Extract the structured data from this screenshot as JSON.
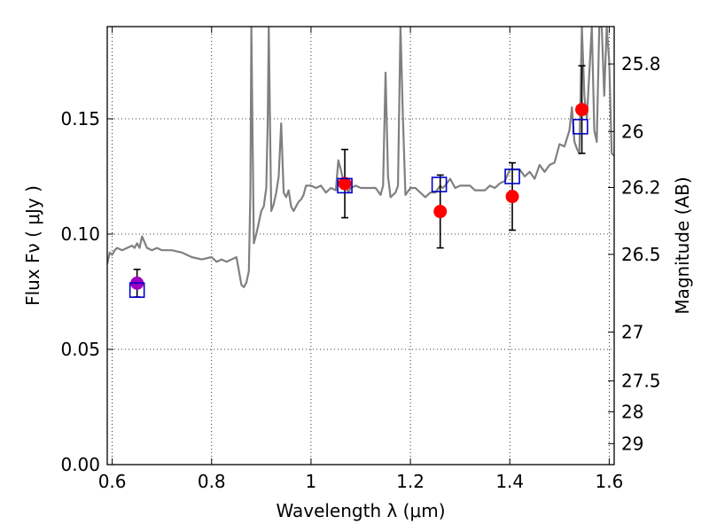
{
  "chart_data": {
    "type": "scatter",
    "title": "",
    "xlabel": "Wavelength  λ (μm)",
    "ylabel": "Flux  Fν  ( μJy )",
    "y2label": "Magnitude (AB)",
    "xlim": [
      0.59,
      1.61
    ],
    "ylim": [
      0.0,
      0.19
    ],
    "grid": true,
    "x_ticks": [
      0.6,
      0.8,
      1.0,
      1.2,
      1.4,
      1.6
    ],
    "x_tick_labels": [
      "0.6",
      "0.8",
      "1",
      "1.2",
      "1.4",
      "1.6"
    ],
    "y_ticks": [
      0.0,
      0.05,
      0.1,
      0.15
    ],
    "y_tick_labels": [
      "0.00",
      "0.05",
      "0.10",
      "0.15"
    ],
    "y2_ticks": [
      {
        "label": "25.8",
        "flux": 0.1738
      },
      {
        "label": "26",
        "flux": 0.1445
      },
      {
        "label": "26.2",
        "flux": 0.1202
      },
      {
        "label": "26.5",
        "flux": 0.0912
      },
      {
        "label": "27",
        "flux": 0.0575
      },
      {
        "label": "27.5",
        "flux": 0.0363
      },
      {
        "label": "28",
        "flux": 0.0229
      },
      {
        "label": "29",
        "flux": 0.0091
      }
    ],
    "series": [
      {
        "type": "line",
        "color": "#808080",
        "x": [
          0.59,
          0.595,
          0.6,
          0.605,
          0.61,
          0.62,
          0.63,
          0.64,
          0.645,
          0.65,
          0.655,
          0.66,
          0.67,
          0.68,
          0.69,
          0.7,
          0.72,
          0.74,
          0.76,
          0.78,
          0.8,
          0.81,
          0.82,
          0.83,
          0.84,
          0.85,
          0.86,
          0.865,
          0.87,
          0.875,
          0.878,
          0.88,
          0.882,
          0.885,
          0.89,
          0.895,
          0.9,
          0.905,
          0.91,
          0.913,
          0.915,
          0.918,
          0.92,
          0.925,
          0.93,
          0.935,
          0.94,
          0.945,
          0.95,
          0.955,
          0.96,
          0.965,
          0.97,
          0.975,
          0.98,
          0.985,
          0.99,
          0.995,
          1.0,
          1.01,
          1.02,
          1.03,
          1.04,
          1.05,
          1.055,
          1.06,
          1.065,
          1.07,
          1.075,
          1.08,
          1.09,
          1.1,
          1.11,
          1.12,
          1.13,
          1.14,
          1.145,
          1.15,
          1.155,
          1.16,
          1.17,
          1.175,
          1.18,
          1.185,
          1.19,
          1.2,
          1.21,
          1.22,
          1.23,
          1.24,
          1.25,
          1.26,
          1.265,
          1.27,
          1.28,
          1.29,
          1.3,
          1.31,
          1.32,
          1.33,
          1.34,
          1.35,
          1.36,
          1.37,
          1.38,
          1.39,
          1.4,
          1.41,
          1.42,
          1.43,
          1.44,
          1.45,
          1.46,
          1.47,
          1.48,
          1.49,
          1.5,
          1.51,
          1.52,
          1.525,
          1.53,
          1.535,
          1.54,
          1.545,
          1.55,
          1.555,
          1.56,
          1.565,
          1.57,
          1.575,
          1.58,
          1.585,
          1.59,
          1.595,
          1.6,
          1.605,
          1.61
        ],
        "y": [
          0.087,
          0.092,
          0.091,
          0.093,
          0.094,
          0.093,
          0.094,
          0.095,
          0.094,
          0.096,
          0.094,
          0.099,
          0.094,
          0.093,
          0.094,
          0.093,
          0.093,
          0.092,
          0.09,
          0.089,
          0.09,
          0.088,
          0.089,
          0.088,
          0.089,
          0.09,
          0.078,
          0.077,
          0.079,
          0.084,
          0.118,
          0.19,
          0.15,
          0.096,
          0.1,
          0.105,
          0.11,
          0.112,
          0.12,
          0.15,
          0.19,
          0.14,
          0.11,
          0.113,
          0.118,
          0.125,
          0.148,
          0.118,
          0.116,
          0.119,
          0.112,
          0.11,
          0.112,
          0.114,
          0.115,
          0.117,
          0.121,
          0.121,
          0.121,
          0.12,
          0.121,
          0.118,
          0.12,
          0.119,
          0.132,
          0.128,
          0.123,
          0.121,
          0.118,
          0.12,
          0.121,
          0.12,
          0.12,
          0.12,
          0.12,
          0.117,
          0.121,
          0.17,
          0.125,
          0.116,
          0.118,
          0.121,
          0.19,
          0.15,
          0.117,
          0.12,
          0.12,
          0.118,
          0.116,
          0.118,
          0.118,
          0.121,
          0.12,
          0.121,
          0.124,
          0.12,
          0.121,
          0.121,
          0.121,
          0.119,
          0.119,
          0.119,
          0.121,
          0.12,
          0.122,
          0.123,
          0.128,
          0.128,
          0.128,
          0.125,
          0.127,
          0.124,
          0.13,
          0.127,
          0.13,
          0.131,
          0.139,
          0.138,
          0.145,
          0.155,
          0.14,
          0.137,
          0.135,
          0.19,
          0.16,
          0.15,
          0.17,
          0.19,
          0.145,
          0.14,
          0.19,
          0.19,
          0.16,
          0.19,
          0.175,
          0.135,
          0.134
        ]
      },
      {
        "type": "errorbar",
        "marker": "circle",
        "color": "#ff0000",
        "points": [
          {
            "x": 1.068,
            "y": 0.1219,
            "yerr": 0.0148
          },
          {
            "x": 1.26,
            "y": 0.1098,
            "yerr": 0.0158
          },
          {
            "x": 1.405,
            "y": 0.1163,
            "yerr": 0.0146
          },
          {
            "x": 1.545,
            "y": 0.154,
            "yerr": 0.019
          }
        ]
      },
      {
        "type": "errorbar",
        "marker": "circle",
        "color": "#a000c0",
        "points": [
          {
            "x": 0.65,
            "y": 0.0787,
            "yerr": 0.006
          }
        ]
      },
      {
        "type": "scatter",
        "marker": "square-open",
        "color": "#0000cc",
        "points": [
          {
            "x": 0.65,
            "y": 0.0757
          },
          {
            "x": 1.068,
            "y": 0.121
          },
          {
            "x": 1.258,
            "y": 0.1215
          },
          {
            "x": 1.405,
            "y": 0.125
          },
          {
            "x": 1.542,
            "y": 0.1466
          }
        ]
      }
    ]
  }
}
